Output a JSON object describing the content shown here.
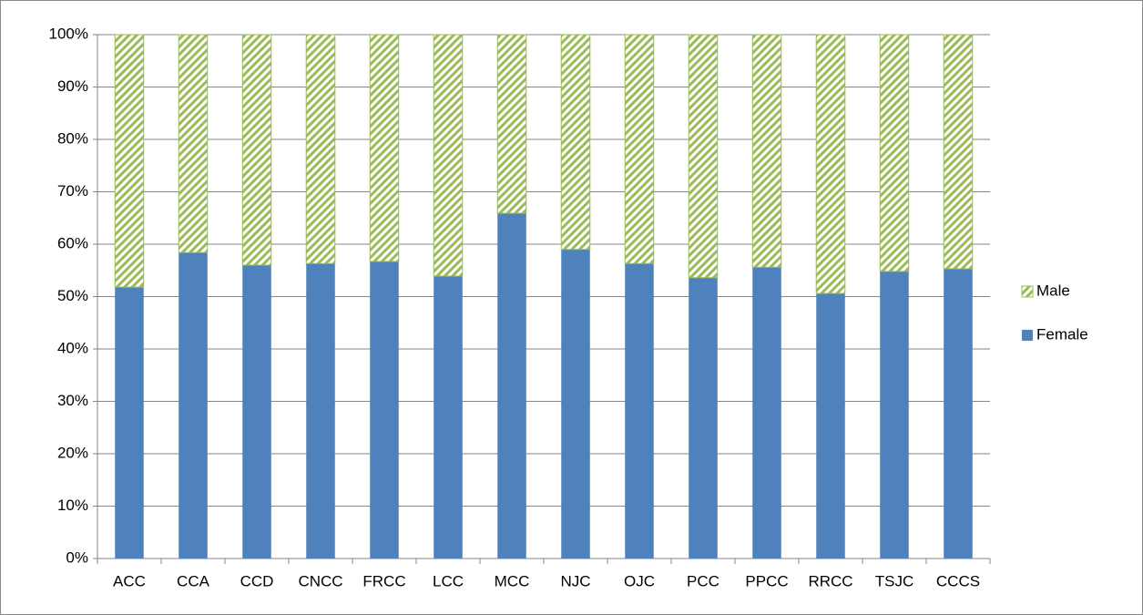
{
  "chart_data": {
    "type": "stacked_bar_100",
    "categories": [
      "ACC",
      "CCA",
      "CCD",
      "CNCC",
      "FRCC",
      "LCC",
      "MCC",
      "NJC",
      "OJC",
      "PCC",
      "PPCC",
      "RRCC",
      "TSJC",
      "CCCS"
    ],
    "series": [
      {
        "name": "Female",
        "color": "#4f81bd",
        "pattern": "solid",
        "values": [
          51.8,
          58.4,
          56,
          56.3,
          56.7,
          53.9,
          65.9,
          59,
          56.3,
          53.6,
          55.6,
          50.6,
          54.8,
          55.3
        ]
      },
      {
        "name": "Male",
        "color": "#9bbb59",
        "pattern": "diagonal",
        "values": [
          48.2,
          41.6,
          44,
          43.7,
          43.3,
          46.1,
          34.1,
          41,
          43.7,
          46.4,
          44.4,
          49.4,
          45.2,
          44.7
        ]
      }
    ],
    "ylim": [
      0,
      100
    ],
    "yticks": [
      {
        "value": 0,
        "label": "0%"
      },
      {
        "value": 10,
        "label": "10%"
      },
      {
        "value": 20,
        "label": "20%"
      },
      {
        "value": 30,
        "label": "30%"
      },
      {
        "value": 40,
        "label": "40%"
      },
      {
        "value": 50,
        "label": "50%"
      },
      {
        "value": 60,
        "label": "60%"
      },
      {
        "value": 70,
        "label": "70%"
      },
      {
        "value": 80,
        "label": "80%"
      },
      {
        "value": 90,
        "label": "90%"
      },
      {
        "value": 100,
        "label": "100%"
      }
    ],
    "grid": true,
    "legend": "right"
  }
}
